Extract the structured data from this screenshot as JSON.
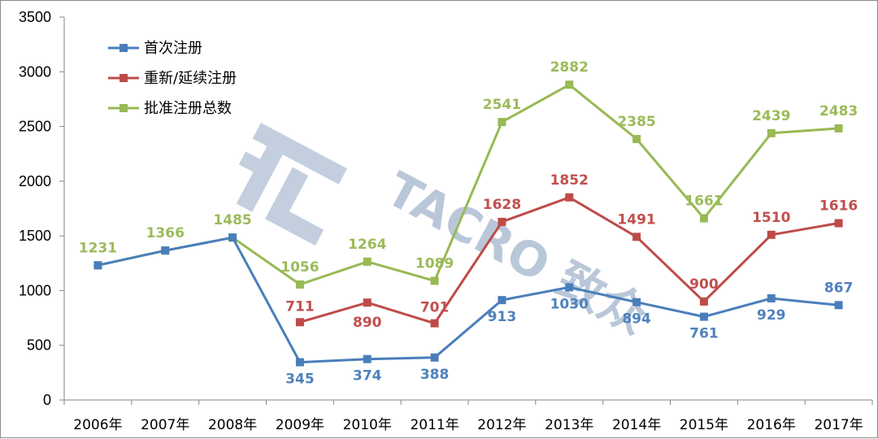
{
  "chart_data": {
    "type": "line",
    "categories": [
      "2006年",
      "2007年",
      "2008年",
      "2009年",
      "2010年",
      "2011年",
      "2012年",
      "2013年",
      "2014年",
      "2015年",
      "2016年",
      "2017年"
    ],
    "ylim": [
      0,
      3500
    ],
    "yticks": [
      0,
      500,
      1000,
      1500,
      2000,
      2500,
      3000,
      3500
    ],
    "grid": false,
    "legend_position": "top-left",
    "series": [
      {
        "name": "首次注册",
        "color": "#4a7ebb",
        "values": [
          1231,
          1366,
          1485,
          345,
          374,
          388,
          913,
          1030,
          894,
          761,
          929,
          867
        ],
        "labeled": [
          false,
          false,
          false,
          true,
          true,
          true,
          true,
          true,
          true,
          true,
          true,
          true
        ]
      },
      {
        "name": "重新/延续注册",
        "color": "#be4b48",
        "values": [
          null,
          null,
          null,
          711,
          890,
          701,
          1628,
          1852,
          1491,
          900,
          1510,
          1616
        ],
        "labeled": [
          false,
          false,
          false,
          true,
          true,
          true,
          true,
          true,
          true,
          true,
          true,
          true
        ]
      },
      {
        "name": "批准注册总数",
        "color": "#98b954",
        "values": [
          1231,
          1366,
          1485,
          1056,
          1264,
          1089,
          2541,
          2882,
          2385,
          1661,
          2439,
          2483
        ],
        "labeled": [
          true,
          true,
          true,
          true,
          true,
          true,
          true,
          true,
          true,
          true,
          true,
          true
        ]
      }
    ]
  },
  "watermark": {
    "text": "TACRO 致众"
  }
}
